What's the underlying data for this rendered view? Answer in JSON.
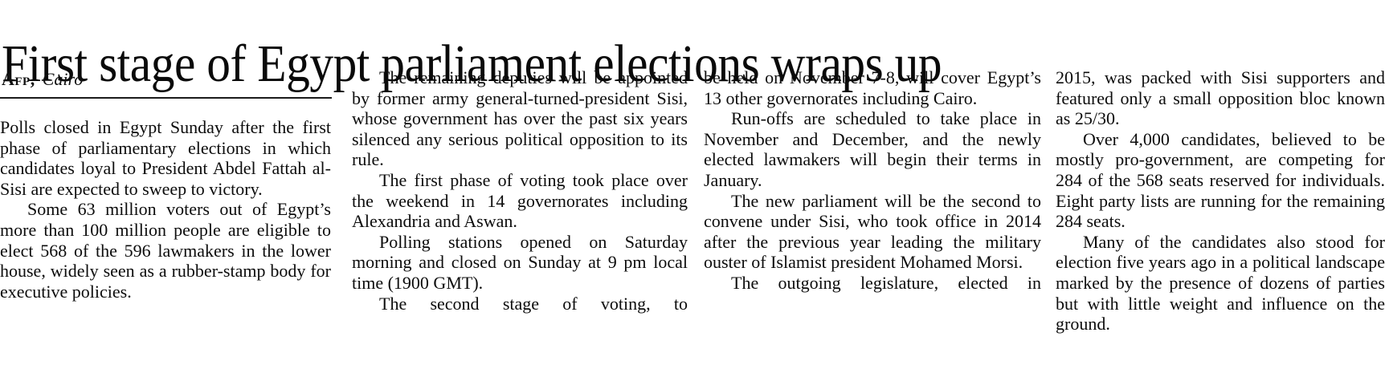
{
  "page": {
    "background_color": "#ffffff",
    "ink_color": "#0c0c0c"
  },
  "article": {
    "headline": "First stage of Egypt parliament elections wraps up",
    "byline": {
      "agency": "Afp,",
      "location": "Cairo"
    },
    "columns": [
      {
        "paragraphs": [
          {
            "indent": false,
            "justify_last": false,
            "text": "Polls closed in Egypt Sunday after the first phase of parliamentary elections in which candidates loyal to President Abdel Fattah al-Sisi are expected to sweep to victory."
          },
          {
            "indent": true,
            "justify_last": false,
            "text": "Some 63 million voters out of Egypt’s more than 100 million people are eligible to elect 568 of the 596 lawmakers in the lower house, widely seen as a rubber-stamp body for executive policies."
          }
        ]
      },
      {
        "paragraphs": [
          {
            "indent": true,
            "justify_last": false,
            "text": "The remaining deputies will be appointed by former army general-turned-president Sisi, whose government has over the past six years silenced any serious political opposition to its rule."
          },
          {
            "indent": true,
            "justify_last": false,
            "text": "The first phase of voting took place over the weekend in 14 governorates including Alexandria and Aswan."
          },
          {
            "indent": true,
            "justify_last": false,
            "text": "Polling stations opened on Saturday morning and closed on Sunday at 9 pm local time (1900 GMT)."
          },
          {
            "indent": true,
            "justify_last": true,
            "text": "The second stage of voting, to"
          }
        ]
      },
      {
        "paragraphs": [
          {
            "indent": false,
            "justify_last": false,
            "text": "be held on November 7-8, will cover Egypt’s 13 other governorates including Cairo."
          },
          {
            "indent": true,
            "justify_last": false,
            "text": "Run-offs are scheduled to take place in November and December, and the newly elected lawmakers will begin their terms in January."
          },
          {
            "indent": true,
            "justify_last": false,
            "text": "The new parliament will be the second to convene under Sisi, who took office in 2014 after the previous year leading the military ouster of Islamist president Mohamed Morsi."
          },
          {
            "indent": true,
            "justify_last": true,
            "text": "The outgoing legislature, elected in"
          }
        ]
      },
      {
        "paragraphs": [
          {
            "indent": false,
            "justify_last": false,
            "text": "2015, was packed with Sisi supporters and featured only a small opposition bloc known as 25/30."
          },
          {
            "indent": true,
            "justify_last": false,
            "text": "Over 4,000 candidates, believed to be mostly pro-government, are competing for 284 of the 568 seats reserved for individuals. Eight party lists are running for the remaining 284 seats."
          },
          {
            "indent": true,
            "justify_last": false,
            "text": "Many of the candidates also stood for election five years ago in a political landscape marked by the presence of dozens of parties but with little weight and influence on the ground."
          }
        ]
      }
    ]
  }
}
